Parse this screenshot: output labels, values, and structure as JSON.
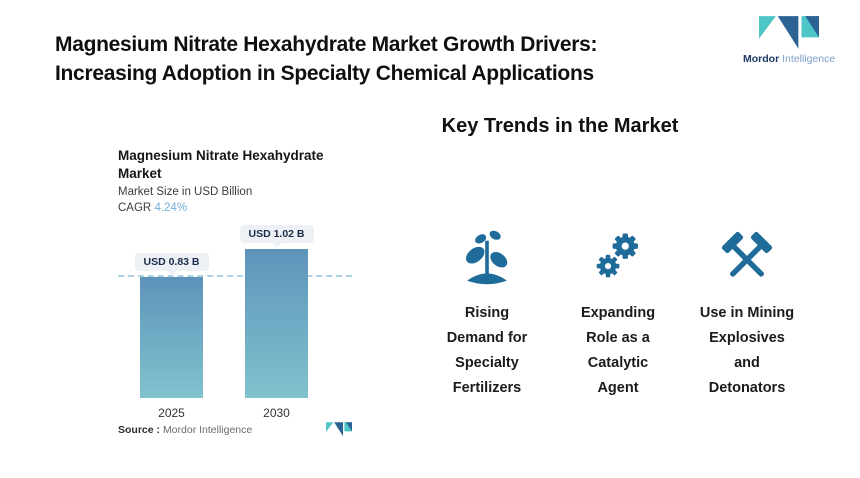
{
  "header": {
    "title_line1": "Magnesium Nitrate Hexahydrate Market Growth Drivers:",
    "title_line2": "Increasing Adoption in Specialty Chemical Applications",
    "logo": {
      "brand_bold": "Mordor",
      "brand_light": "Intelligence"
    }
  },
  "chart": {
    "title_line1": "Magnesium Nitrate Hexahydrate",
    "title_line2": "Market",
    "subtitle": "Market Size in USD Billion",
    "cagr_label": "CAGR",
    "cagr_value": "4.24%",
    "source_label": "Source :",
    "source_value": "Mordor Intelligence"
  },
  "chart_data": {
    "type": "bar",
    "title": "Magnesium Nitrate Hexahydrate Market",
    "ylabel": "Market Size in USD Billion",
    "categories": [
      "2025",
      "2030"
    ],
    "values": [
      0.83,
      1.02
    ],
    "value_labels": [
      "USD 0.83 B",
      "USD 1.02 B"
    ],
    "cagr": "4.24%",
    "reference_line": 0.83,
    "legend": "none",
    "grid": "off"
  },
  "trends": {
    "heading": "Key Trends in the Market",
    "items": [
      {
        "icon": "seedling-icon",
        "label_lines": [
          "Rising",
          "Demand for",
          "Specialty",
          "Fertilizers"
        ]
      },
      {
        "icon": "gears-icon",
        "label_lines": [
          "Expanding",
          "Role as a",
          "Catalytic",
          "Agent"
        ]
      },
      {
        "icon": "mining-hammers-icon",
        "label_lines": [
          "Use in Mining",
          "Explosives",
          "and",
          "Detonators"
        ]
      }
    ]
  },
  "colors": {
    "accent_teal": "#4ec5c7",
    "accent_blue": "#2d6394",
    "icon_blue": "#1f6b99",
    "bar_gradient_top": "#5e93ba",
    "bar_gradient_bottom": "#80c3ce",
    "dashed_line": "#aed2e3",
    "cagr_value": "#72aed4",
    "pill_bg": "#edf1f5",
    "text_dark": "#111111"
  }
}
